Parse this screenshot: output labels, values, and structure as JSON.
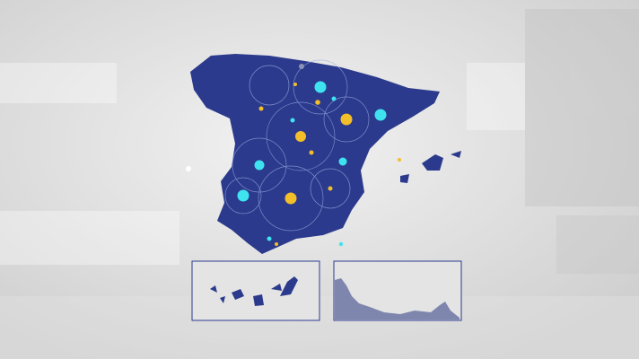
{
  "colors": {
    "background": "#dcdcdc",
    "map_fill": "#2b3a8c",
    "accent_cyan": "#3fe3f0",
    "accent_yellow": "#f2be2a",
    "inset_border": "#2b3a8c"
  },
  "insets": [
    {
      "name": "canary-islands"
    },
    {
      "name": "north-africa-coast"
    }
  ]
}
